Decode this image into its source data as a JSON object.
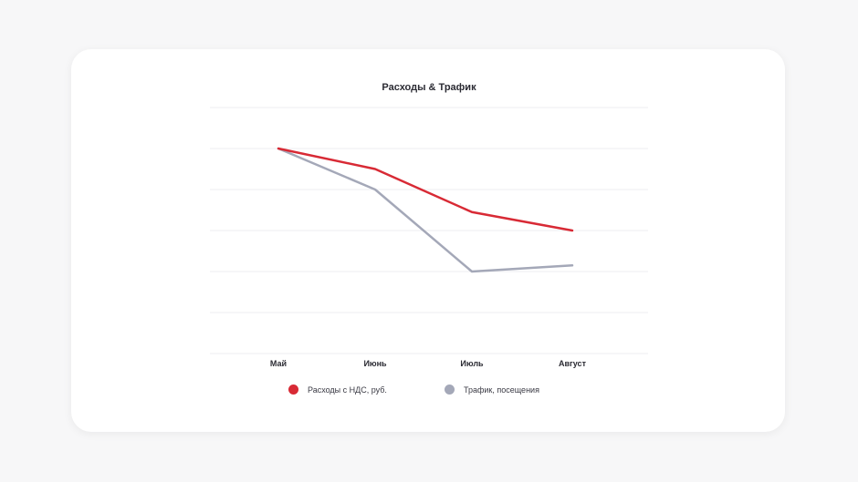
{
  "chart_data": {
    "type": "line",
    "title": "Расходы & Трафик",
    "categories": [
      "Май",
      "Июнь",
      "Июль",
      "Август"
    ],
    "series": [
      {
        "name": "Расходы с НДС, руб.",
        "color": "#d82a35",
        "values": [
          5.0,
          4.5,
          3.45,
          3.0
        ]
      },
      {
        "name": "Трафик, посещения",
        "color": "#a4a8b8",
        "values": [
          5.0,
          4.0,
          2.0,
          2.15
        ]
      }
    ],
    "ylim": [
      0,
      6
    ],
    "grid": true,
    "legend": "bottom",
    "xlabel": "",
    "ylabel": ""
  }
}
